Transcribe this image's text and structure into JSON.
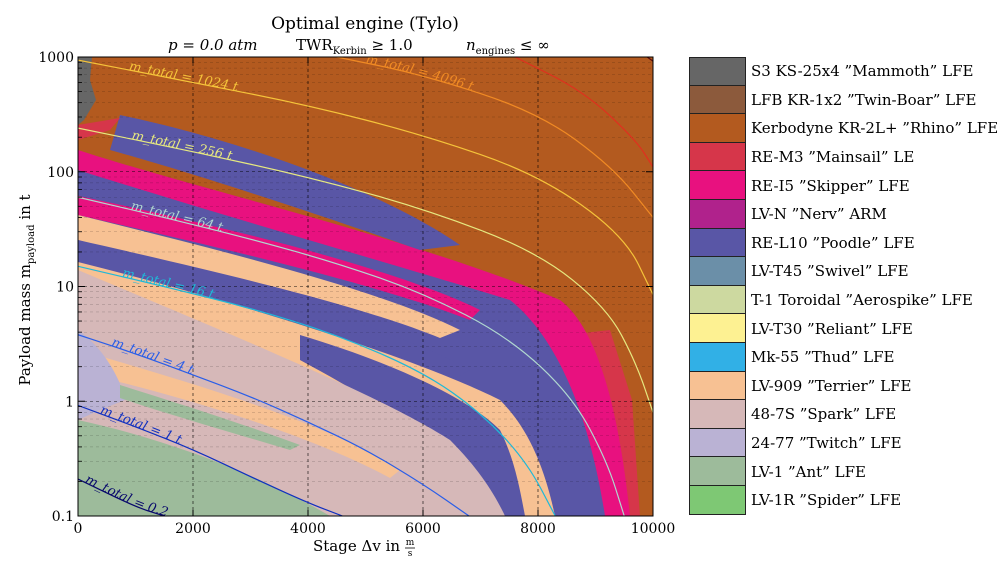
{
  "chart_data": {
    "type": "heatmap",
    "title": "Optimal engine (Tylo)",
    "subtitle_parts": {
      "pressure": "p = 0.0 atm",
      "twr_prefix": "TWR",
      "twr_sub": "Kerbin",
      "twr_suffix": " ≥ 1.0",
      "n_prefix": "n",
      "n_sub": "engines",
      "n_suffix": " ≤ ∞"
    },
    "xlabel": "Stage Δv in m/s",
    "ylabel": "Payload mass m_payload in t",
    "xlabel_parts": {
      "main": "Stage Δv in ",
      "num": "m",
      "den": "s"
    },
    "ylabel_parts": {
      "main": "Payload mass m",
      "sub": "payload",
      "unit": " in t"
    },
    "xlim": [
      0,
      10000
    ],
    "ylim": [
      0.1,
      1000
    ],
    "yscale": "log",
    "grid": true,
    "x_ticks": [
      "0",
      "2000",
      "4000",
      "6000",
      "8000",
      "10000"
    ],
    "y_ticks": [
      "0.1",
      "1",
      "10",
      "100",
      "1000"
    ],
    "legend_placement": "right",
    "legend": [
      {
        "label": "S3 KS-25x4 ”Mammoth” LFE",
        "color": "#666666"
      },
      {
        "label": "LFB KR-1x2 ”Twin-Boar” LFE",
        "color": "#8c5a3c"
      },
      {
        "label": "Kerbodyne KR-2L+ ”Rhino” LFE",
        "color": "#b35a1f"
      },
      {
        "label": "RE-M3 ”Mainsail” LE",
        "color": "#d6364a"
      },
      {
        "label": "RE-I5 ”Skipper” LFE",
        "color": "#e8117f"
      },
      {
        "label": "LV-N ”Nerv” ARM",
        "color": "#b0228c"
      },
      {
        "label": "RE-L10 ”Poodle” LFE",
        "color": "#5956a6"
      },
      {
        "label": "LV-T45 ”Swivel” LFE",
        "color": "#6b8fa8"
      },
      {
        "label": "T-1 Toroidal ”Aerospike” LFE",
        "color": "#cdd9a0"
      },
      {
        "label": "LV-T30 ”Reliant” LFE",
        "color": "#fdf192"
      },
      {
        "label": "Mk-55 ”Thud” LFE",
        "color": "#31b0e6"
      },
      {
        "label": "LV-909 ”Terrier” LFE",
        "color": "#f7c193"
      },
      {
        "label": "48-7S ”Spark” LFE",
        "color": "#d6b8b8"
      },
      {
        "label": "24-77 ”Twitch” LFE",
        "color": "#bab2d4"
      },
      {
        "label": "LV-1 ”Ant” LFE",
        "color": "#9dbb9b"
      },
      {
        "label": "LV-1R ”Spider” LFE",
        "color": "#7ec874"
      }
    ],
    "contours": [
      {
        "label": "m_total = 0.25 t",
        "total_t": 0.25,
        "color": "#08086b",
        "points": [
          [
            0,
            0.21
          ],
          [
            1000,
            0.12
          ],
          [
            1500,
            0.1
          ]
        ]
      },
      {
        "label": "m_total = 1 t",
        "total_t": 1,
        "color": "#1030c0",
        "points": [
          [
            0,
            0.92
          ],
          [
            1000,
            0.6
          ],
          [
            2000,
            0.38
          ],
          [
            3000,
            0.22
          ],
          [
            4000,
            0.13
          ],
          [
            4600,
            0.1
          ]
        ]
      },
      {
        "label": "m_total = 4 t",
        "total_t": 4,
        "color": "#2a5ee8",
        "points": [
          [
            0,
            3.8
          ],
          [
            1000,
            2.6
          ],
          [
            2000,
            1.7
          ],
          [
            3000,
            1.1
          ],
          [
            4000,
            0.66
          ],
          [
            5000,
            0.38
          ],
          [
            6000,
            0.19
          ],
          [
            6800,
            0.1
          ]
        ]
      },
      {
        "label": "m_total = 16 t",
        "total_t": 16,
        "color": "#1fb8d8",
        "points": [
          [
            0,
            15
          ],
          [
            1500,
            10
          ],
          [
            3000,
            6.5
          ],
          [
            4500,
            3.8
          ],
          [
            6000,
            1.8
          ],
          [
            7000,
            0.8
          ],
          [
            7800,
            0.3
          ],
          [
            8300,
            0.1
          ]
        ]
      },
      {
        "label": "m_total = 64 t",
        "total_t": 64,
        "color": "#b0d8d0",
        "points": [
          [
            0,
            60
          ],
          [
            1500,
            40
          ],
          [
            3000,
            26
          ],
          [
            4500,
            16
          ],
          [
            6000,
            8.8
          ],
          [
            7500,
            3.6
          ],
          [
            8600,
            1.1
          ],
          [
            9200,
            0.3
          ],
          [
            9500,
            0.1
          ]
        ]
      },
      {
        "label": "m_total = 256 t",
        "total_t": 256,
        "color": "#e6e880",
        "points": [
          [
            0,
            240
          ],
          [
            2000,
            150
          ],
          [
            4000,
            90
          ],
          [
            6000,
            48
          ],
          [
            8000,
            20
          ],
          [
            9200,
            6.5
          ],
          [
            9700,
            2.2
          ],
          [
            10000,
            0.8
          ]
        ]
      },
      {
        "label": "m_total = 1024 t",
        "total_t": 1024,
        "color": "#f5c33a",
        "points": [
          [
            0,
            940
          ],
          [
            2000,
            600
          ],
          [
            4000,
            380
          ],
          [
            6000,
            210
          ],
          [
            8000,
            95
          ],
          [
            9500,
            28
          ],
          [
            10000,
            8.5
          ]
        ]
      },
      {
        "label": "m_total = 4096 t",
        "total_t": 4096,
        "color": "#f08a24",
        "points": [
          [
            4500,
            1000
          ],
          [
            6000,
            700
          ],
          [
            8000,
            330
          ],
          [
            9300,
            110
          ],
          [
            10000,
            40
          ]
        ]
      },
      {
        "label": "",
        "total_t": null,
        "color": "#e0301e",
        "points": [
          [
            7600,
            1000
          ],
          [
            8800,
            500
          ],
          [
            9700,
            190
          ],
          [
            10000,
            110
          ]
        ]
      },
      {
        "label": "",
        "total_t": null,
        "color": "#5a0a0a",
        "points": [
          [
            9900,
            1000
          ],
          [
            10000,
            920
          ]
        ]
      }
    ]
  }
}
